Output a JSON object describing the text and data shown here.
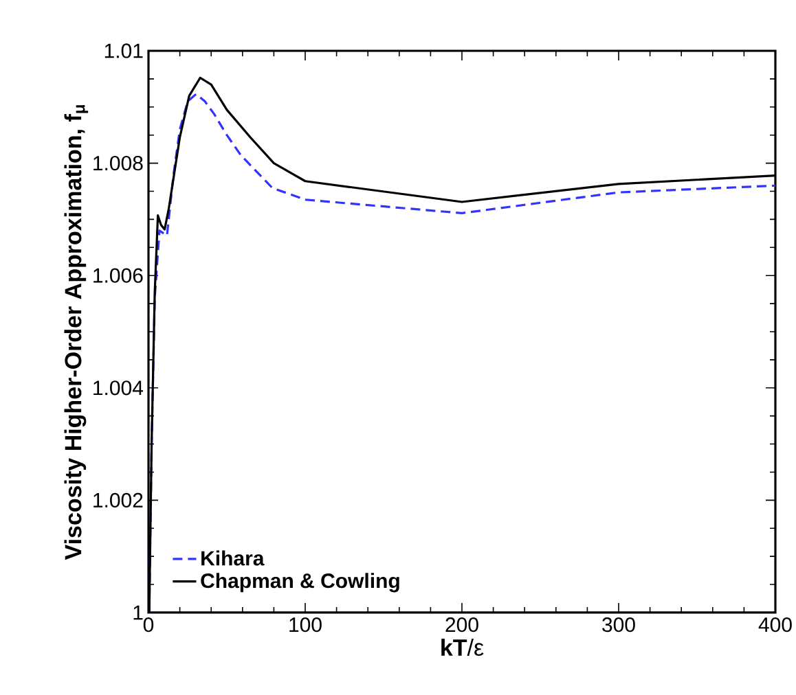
{
  "chart_data": {
    "type": "line",
    "xlabel": "**kT**/ε",
    "ylabel": "**Viscosity Higher-Order Approximation, f**$_{μ}$",
    "xlim": [
      0,
      400
    ],
    "xticks": [
      0,
      100,
      200,
      300,
      400
    ],
    "ylim": [
      1,
      1.01
    ],
    "yticks": [
      1,
      1.002,
      1.004,
      1.006,
      1.008,
      1.01
    ],
    "legend": "bottom left",
    "grid": false,
    "marker": "none",
    "series": [
      {
        "name": "Kihara",
        "color": "#3333ff",
        "line_style": "dashed",
        "x": [
          0.5,
          2,
          4,
          7,
          11.8,
          16,
          20,
          25,
          30.4,
          36,
          42,
          50,
          59,
          79,
          100,
          200,
          300,
          400
        ],
        "values": [
          1.0,
          1.003,
          1.0056,
          1.0068,
          1.00671,
          1.0078,
          1.0086,
          1.0091,
          1.00923,
          1.0091,
          1.00887,
          1.0085,
          1.00814,
          1.00756,
          1.00735,
          1.00711,
          1.00748,
          1.0076
        ]
      },
      {
        "name": "Chapman & Cowling",
        "color": "#000000",
        "line_style": "solid",
        "x": [
          0.5,
          2,
          4,
          6,
          8,
          10.3,
          13,
          20,
          26,
          33,
          40,
          50,
          65,
          80,
          100,
          200,
          300,
          400
        ],
        "values": [
          1.0,
          1.003,
          1.0057,
          1.00707,
          1.0069,
          1.00682,
          1.0072,
          1.00846,
          1.0092,
          1.00952,
          1.0094,
          1.00895,
          1.00846,
          1.008,
          1.00768,
          1.00731,
          1.00763,
          1.00778
        ]
      }
    ]
  }
}
